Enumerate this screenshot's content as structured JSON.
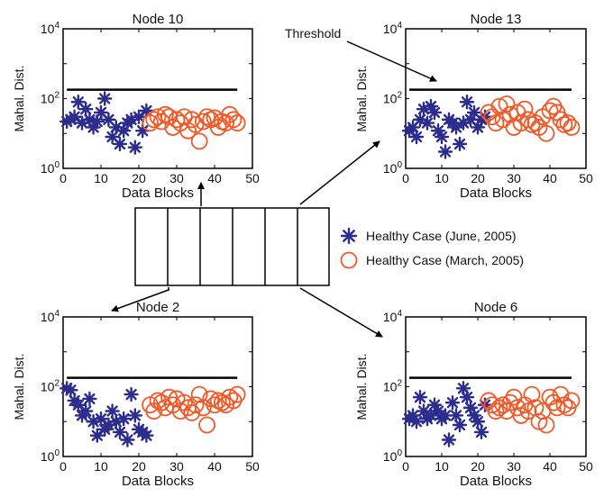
{
  "colors": {
    "healthy_june": "#2b2c8e",
    "healthy_march": "#f05a28",
    "axes": "#000000",
    "threshold": "#000000"
  },
  "legend": {
    "items": [
      {
        "label": "Healthy Case (June, 2005)",
        "marker": "asterisk",
        "color": "#2b2c8e"
      },
      {
        "label": "Healthy Case (March, 2005)",
        "marker": "circle",
        "color": "#f05a28"
      }
    ]
  },
  "annotation": {
    "text": "Threshold"
  },
  "chart_data": [
    {
      "type": "scatter",
      "title": "Node 10",
      "xlabel": "Data Blocks",
      "ylabel": "Mahal. Dist.",
      "yscale": "log",
      "xlim": [
        0,
        50
      ],
      "ylim": [
        1,
        10000
      ],
      "xticks": [
        "0",
        "10",
        "20",
        "30",
        "40",
        "50"
      ],
      "yticks": [
        "10^0",
        "10^2",
        "10^4"
      ],
      "threshold": 180,
      "series": [
        {
          "name": "Healthy Case (June, 2005)",
          "marker": "asterisk",
          "x": [
            1,
            2,
            3,
            4,
            5,
            6,
            7,
            8,
            9,
            10,
            11,
            12,
            13,
            14,
            15,
            16,
            17,
            18,
            19,
            20,
            21,
            22
          ],
          "y": [
            22,
            25,
            30,
            80,
            20,
            50,
            25,
            15,
            22,
            40,
            100,
            25,
            8,
            15,
            5,
            12,
            20,
            25,
            4,
            30,
            12,
            45
          ]
        },
        {
          "name": "Healthy Case (March, 2005)",
          "marker": "circle",
          "x": [
            23,
            24,
            25,
            26,
            27,
            28,
            29,
            30,
            31,
            32,
            33,
            34,
            35,
            36,
            37,
            38,
            39,
            40,
            41,
            42,
            43,
            44,
            45,
            46
          ],
          "y": [
            20,
            25,
            30,
            22,
            35,
            30,
            15,
            25,
            20,
            30,
            12,
            25,
            18,
            6,
            22,
            30,
            25,
            28,
            15,
            22,
            20,
            35,
            25,
            20
          ]
        }
      ]
    },
    {
      "type": "scatter",
      "title": "Node 13",
      "xlabel": "Data Blocks",
      "ylabel": "Mahal. Dist.",
      "yscale": "log",
      "xlim": [
        0,
        50
      ],
      "ylim": [
        1,
        10000
      ],
      "xticks": [
        "0",
        "10",
        "20",
        "30",
        "40",
        "50"
      ],
      "yticks": [
        "10^0",
        "10^2",
        "10^4"
      ],
      "threshold": 180,
      "series": [
        {
          "name": "Healthy Case (June, 2005)",
          "marker": "asterisk",
          "x": [
            1,
            2,
            3,
            4,
            5,
            6,
            7,
            8,
            9,
            10,
            11,
            12,
            13,
            14,
            15,
            16,
            17,
            18,
            19,
            20,
            21,
            22
          ],
          "y": [
            12,
            15,
            8,
            25,
            50,
            20,
            60,
            40,
            12,
            8,
            3,
            25,
            20,
            15,
            5,
            20,
            80,
            25,
            40,
            15,
            25,
            30
          ]
        },
        {
          "name": "Healthy Case (March, 2005)",
          "marker": "circle",
          "x": [
            23,
            24,
            25,
            26,
            27,
            28,
            29,
            30,
            31,
            32,
            33,
            34,
            35,
            36,
            37,
            38,
            39,
            40,
            41,
            42,
            43,
            44,
            45,
            46
          ],
          "y": [
            40,
            30,
            20,
            60,
            25,
            70,
            35,
            15,
            40,
            20,
            50,
            25,
            18,
            20,
            15,
            30,
            10,
            45,
            60,
            40,
            25,
            18,
            20,
            15
          ]
        }
      ]
    },
    {
      "type": "scatter",
      "title": "Node 2",
      "xlabel": "Data Blocks",
      "ylabel": "Mahal. Dist.",
      "yscale": "log",
      "xlim": [
        0,
        50
      ],
      "ylim": [
        1,
        10000
      ],
      "xticks": [
        "0",
        "10",
        "20",
        "30",
        "40",
        "50"
      ],
      "yticks": [
        "10^0",
        "10^2",
        "10^4"
      ],
      "threshold": 180,
      "series": [
        {
          "name": "Healthy Case (June, 2005)",
          "marker": "asterisk",
          "x": [
            1,
            2,
            3,
            4,
            5,
            6,
            7,
            8,
            9,
            10,
            11,
            12,
            13,
            14,
            15,
            16,
            17,
            18,
            19,
            20,
            21,
            22
          ],
          "y": [
            90,
            80,
            40,
            30,
            15,
            20,
            45,
            10,
            4,
            12,
            6,
            8,
            20,
            10,
            5,
            12,
            3,
            60,
            15,
            6,
            5,
            4
          ]
        },
        {
          "name": "Healthy Case (March, 2005)",
          "marker": "circle",
          "x": [
            23,
            24,
            25,
            26,
            27,
            28,
            29,
            30,
            31,
            32,
            33,
            34,
            35,
            36,
            37,
            38,
            39,
            40,
            41,
            42,
            43,
            44,
            45,
            46
          ],
          "y": [
            30,
            20,
            40,
            35,
            25,
            50,
            30,
            45,
            20,
            35,
            25,
            18,
            30,
            60,
            25,
            8,
            45,
            30,
            40,
            35,
            30,
            50,
            40,
            60
          ]
        }
      ]
    },
    {
      "type": "scatter",
      "title": "Node 6",
      "xlabel": "Data Blocks",
      "ylabel": "Mahal. Dist.",
      "yscale": "log",
      "xlim": [
        0,
        50
      ],
      "ylim": [
        1,
        10000
      ],
      "xticks": [
        "0",
        "10",
        "20",
        "30",
        "40",
        "50"
      ],
      "yticks": [
        "10^0",
        "10^2",
        "10^4"
      ],
      "threshold": 180,
      "series": [
        {
          "name": "Healthy Case (June, 2005)",
          "marker": "asterisk",
          "x": [
            1,
            2,
            3,
            4,
            5,
            6,
            7,
            8,
            9,
            10,
            11,
            12,
            13,
            14,
            15,
            16,
            17,
            18,
            19,
            20,
            21,
            22
          ],
          "y": [
            12,
            15,
            10,
            50,
            20,
            12,
            15,
            30,
            20,
            12,
            15,
            3,
            35,
            15,
            8,
            90,
            50,
            25,
            15,
            10,
            5,
            30
          ]
        },
        {
          "name": "Healthy Case (March, 2005)",
          "marker": "circle",
          "x": [
            23,
            24,
            25,
            26,
            27,
            28,
            29,
            30,
            31,
            32,
            33,
            34,
            35,
            36,
            37,
            38,
            39,
            40,
            41,
            42,
            43,
            44,
            45,
            46
          ],
          "y": [
            40,
            30,
            20,
            25,
            30,
            20,
            35,
            50,
            25,
            15,
            30,
            20,
            60,
            25,
            10,
            20,
            8,
            50,
            35,
            25,
            60,
            30,
            25,
            40
          ]
        }
      ]
    }
  ]
}
